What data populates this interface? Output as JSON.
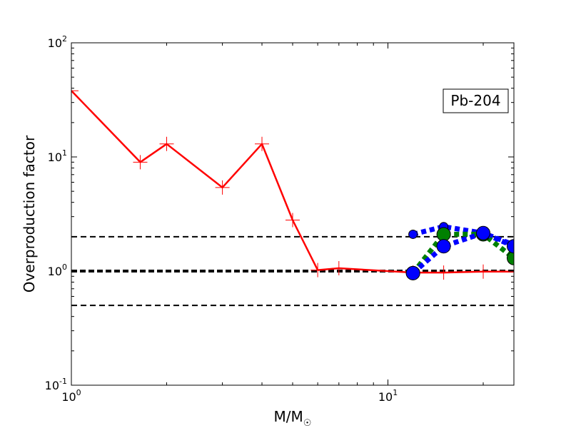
{
  "chart_data": {
    "type": "line",
    "xscale": "log",
    "yscale": "log",
    "xlim": [
      1,
      25
    ],
    "ylim": [
      0.1,
      100
    ],
    "xlabel_main": "M/M",
    "xlabel_sub": "☉",
    "ylabel": "Overproduction factor",
    "annotation": "Pb-204",
    "x_ticks": [
      {
        "value": 1,
        "base": "10",
        "exp": "0"
      },
      {
        "value": 10,
        "base": "10",
        "exp": "1"
      }
    ],
    "y_ticks": [
      {
        "value": 0.1,
        "base": "10",
        "exp": "-1"
      },
      {
        "value": 1,
        "base": "10",
        "exp": "0"
      },
      {
        "value": 10,
        "base": "10",
        "exp": "1"
      },
      {
        "value": 100,
        "base": "10",
        "exp": "2"
      }
    ],
    "reference_lines": [
      {
        "y": 2.0,
        "style": "dashed",
        "width": "thin"
      },
      {
        "y": 1.0,
        "style": "dashed",
        "width": "thick"
      },
      {
        "y": 0.5,
        "style": "dashed",
        "width": "thin"
      }
    ],
    "series": [
      {
        "color": "#ff0000",
        "line_style": "solid",
        "marker": "plus",
        "points": [
          {
            "x": 1.0,
            "y": 38
          },
          {
            "x": 1.65,
            "y": 9.0
          },
          {
            "x": 2.0,
            "y": 13.0
          },
          {
            "x": 3.0,
            "y": 5.4
          },
          {
            "x": 4.0,
            "y": 13.0
          },
          {
            "x": 5.0,
            "y": 2.8
          },
          {
            "x": 6.0,
            "y": 1.02
          },
          {
            "x": 7.0,
            "y": 1.06
          },
          {
            "x": 12.0,
            "y": 0.97
          },
          {
            "x": 15.0,
            "y": 0.97
          },
          {
            "x": 20.0,
            "y": 0.99
          },
          {
            "x": 25.0,
            "y": 0.99
          }
        ]
      },
      {
        "color": "#0000ff",
        "line_style": "dotted",
        "marker": "circle",
        "marker_size": "small",
        "points": [
          {
            "x": 12.0,
            "y": 2.1
          },
          {
            "x": 15.0,
            "y": 2.45
          },
          {
            "x": 20.0,
            "y": 2.15
          },
          {
            "x": 25.0,
            "y": 1.7
          }
        ]
      },
      {
        "color": "#008000",
        "line_style": "dotted",
        "marker": "circle",
        "marker_size": "large",
        "points": [
          {
            "x": 12.0,
            "y": 0.96
          },
          {
            "x": 15.0,
            "y": 2.1
          },
          {
            "x": 20.0,
            "y": 2.1
          },
          {
            "x": 25.0,
            "y": 1.3
          }
        ]
      },
      {
        "color": "#0000ff",
        "line_style": "dotted",
        "marker": "circle",
        "marker_size": "large",
        "points": [
          {
            "x": 12.0,
            "y": 0.96
          },
          {
            "x": 15.0,
            "y": 1.65
          },
          {
            "x": 20.0,
            "y": 2.15
          },
          {
            "x": 25.0,
            "y": 1.65
          }
        ]
      }
    ]
  }
}
